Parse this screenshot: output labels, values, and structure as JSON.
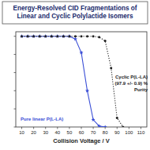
{
  "chart_data": {
    "type": "line",
    "title": "Energy-Resolved CID Fragmentations of Linear and Cyclic Polylactide Isomers",
    "x_label": "Collision Voltage / V",
    "xlim": [
      5,
      115
    ],
    "xticks": [
      10,
      20,
      30,
      40,
      50,
      60,
      70,
      80,
      90,
      100,
      110
    ],
    "ylim": [
      0,
      105
    ],
    "yticks": [
      0,
      20,
      40,
      60,
      80,
      100
    ],
    "tick_labels": "x",
    "annotations": [
      "Cyclic P(L-LA)",
      "(97.9 +/- 0.9) %",
      "Purity",
      "Pure linear P(L-LA)"
    ],
    "series": [
      {
        "name": "Pure linear P(L-LA)",
        "color": "#3b4fd6",
        "marker": "star",
        "line_style": "solid",
        "x": [
          10,
          15,
          20,
          25,
          30,
          35,
          40,
          45,
          50,
          55,
          60,
          65,
          70,
          75,
          80
        ],
        "values": [
          100,
          100,
          100,
          100,
          100,
          100,
          100,
          100,
          100,
          97,
          82,
          40,
          8,
          1,
          0
        ]
      },
      {
        "name": "Cyclic P(L-LA)",
        "color": "#222222",
        "marker": "circle",
        "line_style": "dotted",
        "x": [
          10,
          15,
          20,
          25,
          30,
          35,
          40,
          45,
          50,
          55,
          60,
          65,
          70,
          75,
          80,
          85,
          90,
          95
        ],
        "values": [
          100,
          100,
          100,
          100,
          100,
          100,
          100,
          100,
          100,
          100,
          100,
          100,
          100,
          99,
          95,
          65,
          10,
          0
        ]
      }
    ]
  }
}
